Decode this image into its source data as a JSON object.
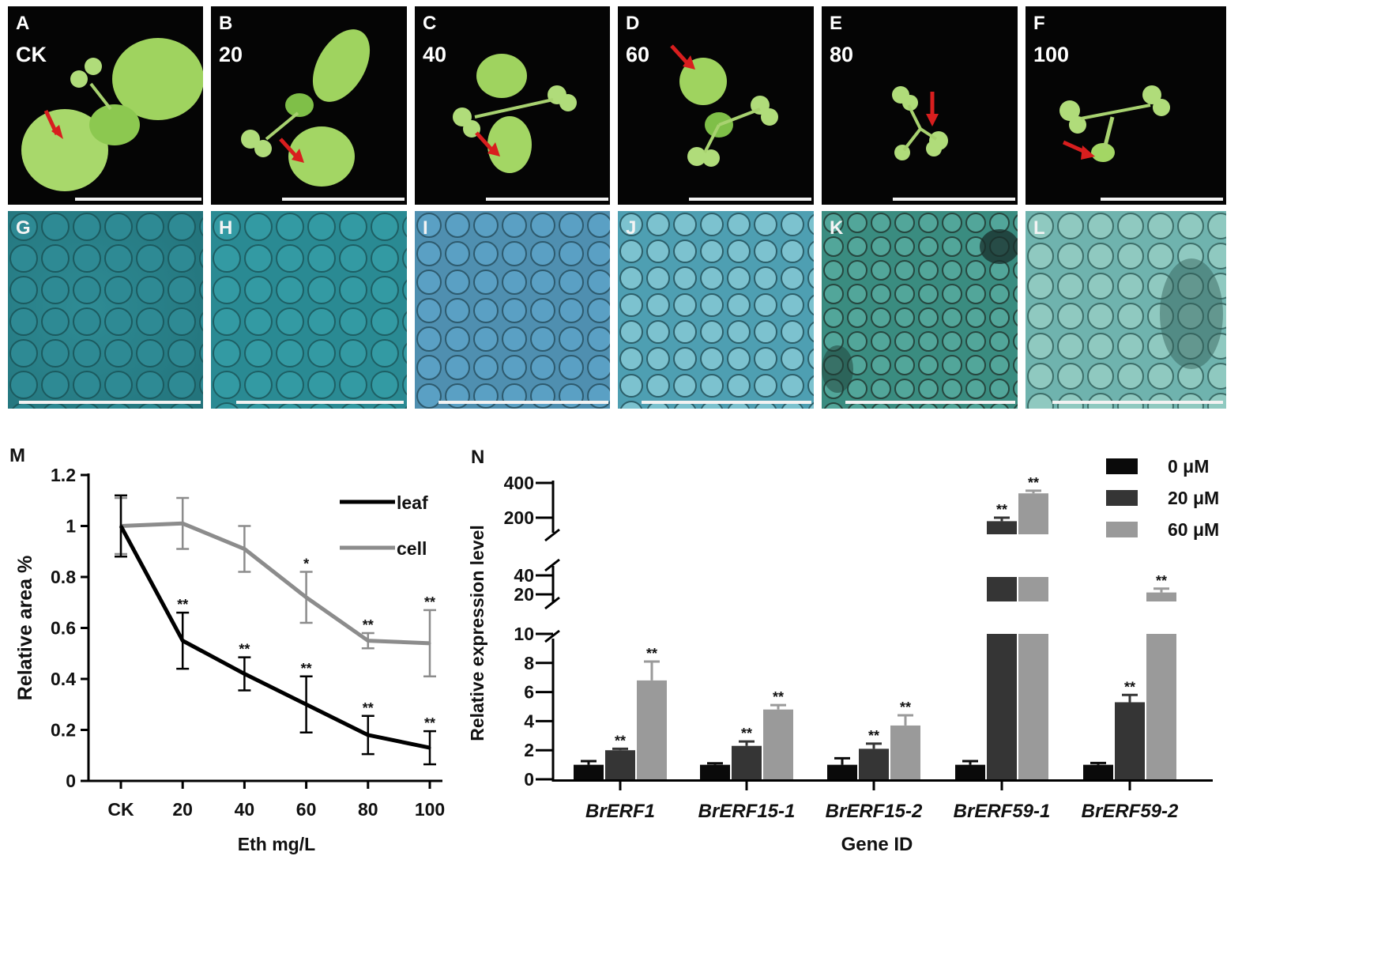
{
  "panels": {
    "top": [
      {
        "letter": "A",
        "label": "CK"
      },
      {
        "letter": "B",
        "label": "20"
      },
      {
        "letter": "C",
        "label": "40"
      },
      {
        "letter": "D",
        "label": "60"
      },
      {
        "letter": "E",
        "label": "80"
      },
      {
        "letter": "F",
        "label": "100"
      }
    ],
    "micro": [
      {
        "letter": "G"
      },
      {
        "letter": "H"
      },
      {
        "letter": "I"
      },
      {
        "letter": "J"
      },
      {
        "letter": "K"
      },
      {
        "letter": "L"
      }
    ]
  },
  "colors": {
    "leaf_line": "#000000",
    "cell_line": "#8c8c8c",
    "bar_0": "#0a0a0a",
    "bar_20": "#353535",
    "bar_60": "#9a9a9a",
    "arrow": "#d81e1e",
    "plant_green": "#8fd04c"
  },
  "chart_data": [
    {
      "panel": "M",
      "type": "line",
      "xlabel": "Eth mg/L",
      "ylabel": "Relative area %",
      "categories": [
        "CK",
        "20",
        "40",
        "60",
        "80",
        "100"
      ],
      "ylim": [
        0,
        1.2
      ],
      "yticks": [
        "0",
        "0.2",
        "0.4",
        "0.6",
        "0.8",
        "1",
        "1.2"
      ],
      "legend_position": "top-right",
      "series": [
        {
          "name": "leaf",
          "values": [
            1.0,
            0.55,
            0.42,
            0.3,
            0.18,
            0.13
          ],
          "errors": [
            0.12,
            0.11,
            0.065,
            0.11,
            0.075,
            0.065
          ],
          "sig": [
            "",
            "**",
            "**",
            "**",
            "**",
            "**"
          ]
        },
        {
          "name": "cell",
          "values": [
            1.0,
            1.01,
            0.91,
            0.72,
            0.55,
            0.54
          ],
          "errors": [
            0.11,
            0.1,
            0.09,
            0.1,
            0.03,
            0.13
          ],
          "sig": [
            "",
            "",
            "",
            "*",
            "**",
            "**"
          ]
        }
      ]
    },
    {
      "panel": "N",
      "type": "bar",
      "xlabel": "Gene ID",
      "ylabel": "Relative expression level",
      "categories": [
        "BrERF1",
        "BrERF15-1",
        "BrERF15-2",
        "BrERF59-1",
        "BrERF59-2"
      ],
      "yticks_lower": [
        "0",
        "2",
        "4",
        "6",
        "8",
        "10"
      ],
      "yticks_middle": [
        "20",
        "40"
      ],
      "yticks_upper": [
        "200",
        "400"
      ],
      "axis_breaks": [
        [
          10,
          20
        ],
        [
          40,
          200
        ]
      ],
      "legend_position": "top-right",
      "series": [
        {
          "name": "0 μM",
          "values": [
            1.0,
            1.0,
            1.0,
            1.0,
            1.0
          ],
          "errors": [
            0.25,
            0.1,
            0.45,
            0.25,
            0.12
          ],
          "sig": [
            "",
            "",
            "",
            "",
            ""
          ]
        },
        {
          "name": "20 μM",
          "values": [
            2.0,
            2.3,
            2.1,
            180,
            5.3
          ],
          "errors": [
            0.1,
            0.3,
            0.35,
            20,
            0.5
          ],
          "sig": [
            "**",
            "**",
            "**",
            "**",
            "**"
          ]
        },
        {
          "name": "60 μM",
          "values": [
            6.8,
            4.8,
            3.7,
            340,
            22
          ],
          "errors": [
            1.3,
            0.3,
            0.7,
            15,
            4
          ],
          "sig": [
            "**",
            "**",
            "**",
            "**",
            "**"
          ]
        }
      ]
    }
  ]
}
